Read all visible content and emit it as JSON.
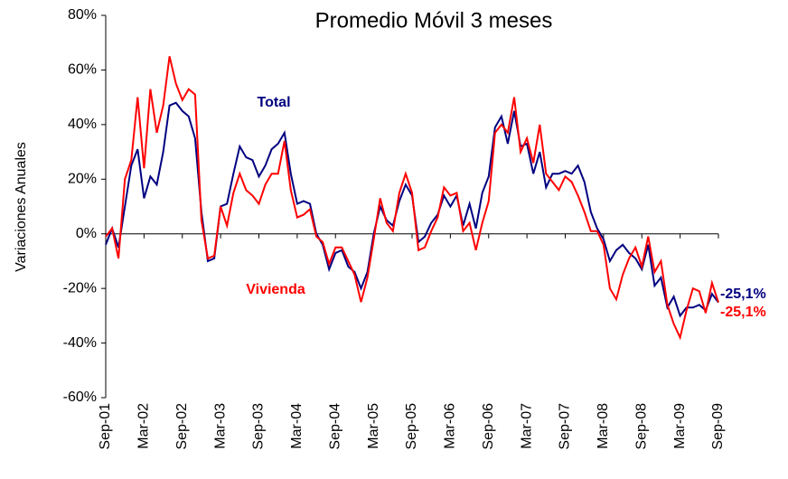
{
  "chart_data": {
    "type": "line",
    "title": "Promedio Móvil 3 meses",
    "y_label": "Variaciones Anuales",
    "categories": [
      "Sep-01",
      null,
      null,
      null,
      null,
      null,
      "Mar-02",
      null,
      null,
      null,
      null,
      null,
      "Sep-02",
      null,
      null,
      null,
      null,
      null,
      "Mar-03",
      null,
      null,
      null,
      null,
      null,
      "Sep-03",
      null,
      null,
      null,
      null,
      null,
      "Mar-04",
      null,
      null,
      null,
      null,
      null,
      "Sep-04",
      null,
      null,
      null,
      null,
      null,
      "Mar-05",
      null,
      null,
      null,
      null,
      null,
      "Sep-05",
      null,
      null,
      null,
      null,
      null,
      "Mar-06",
      null,
      null,
      null,
      null,
      null,
      "Sep-06",
      null,
      null,
      null,
      null,
      null,
      "Mar-07",
      null,
      null,
      null,
      null,
      null,
      "Sep-07",
      null,
      null,
      null,
      null,
      null,
      "Mar-08",
      null,
      null,
      null,
      null,
      null,
      "Sep-08",
      null,
      null,
      null,
      null,
      null,
      "Mar-09",
      null,
      null,
      null,
      null,
      null,
      "Sep-09"
    ],
    "series": [
      {
        "name": "Total",
        "color": "#000080",
        "values": [
          -4,
          2,
          -5,
          10,
          25,
          31,
          13,
          21,
          18,
          30,
          47,
          48,
          45,
          43,
          35,
          8,
          -10,
          -9,
          10,
          11,
          22,
          32,
          28,
          27,
          21,
          25,
          31,
          33,
          37,
          22,
          11,
          12,
          11,
          0,
          -4,
          -13,
          -7,
          -6,
          -12,
          -14,
          -20,
          -14,
          0,
          10,
          5,
          3,
          12,
          18,
          14,
          -3,
          -1,
          4,
          7,
          14,
          10,
          14,
          3,
          11,
          2,
          15,
          21,
          39,
          43,
          33,
          45,
          32,
          33,
          22,
          30,
          17,
          22,
          22,
          23,
          22,
          25,
          19,
          8,
          2,
          -2,
          -10,
          -6,
          -4,
          -7,
          -9,
          -13,
          -4,
          -19,
          -16,
          -27,
          -23,
          -30,
          -27,
          -27,
          -26,
          -28,
          -22,
          -25.1
        ],
        "value_labels": [
          null,
          null,
          null,
          null,
          null,
          null,
          null,
          null,
          null,
          null,
          null,
          null,
          null,
          null,
          null,
          null,
          null,
          null,
          null,
          null,
          null,
          null,
          null,
          null,
          null,
          null,
          null,
          null,
          null,
          null,
          null,
          null,
          null,
          null,
          null,
          null,
          null,
          null,
          null,
          null,
          null,
          null,
          null,
          null,
          null,
          null,
          null,
          null,
          null,
          null,
          null,
          null,
          null,
          null,
          null,
          null,
          null,
          null,
          null,
          null,
          null,
          null,
          null,
          null,
          null,
          null,
          null,
          null,
          null,
          null,
          null,
          null,
          null,
          null,
          null,
          null,
          null,
          null,
          null,
          null,
          null,
          null,
          null,
          null,
          null,
          null,
          null,
          null,
          null,
          null,
          null,
          null,
          null,
          null,
          null,
          null,
          "-25,1%"
        ]
      },
      {
        "name": "Vivienda",
        "color": "#ff0000",
        "values": [
          -1,
          2,
          -9,
          20,
          27,
          50,
          24,
          53,
          37,
          47,
          65,
          55,
          49,
          53,
          51,
          5,
          -9,
          -8,
          10,
          3,
          15,
          22,
          16,
          14,
          11,
          18,
          22,
          22,
          34,
          16,
          6,
          7,
          9,
          -1,
          -3,
          -11,
          -5,
          -5,
          -10,
          -15,
          -25,
          -16,
          -2,
          13,
          4,
          1,
          15,
          22,
          15,
          -6,
          -5,
          1,
          6,
          17,
          14,
          15,
          1,
          4,
          -6,
          4,
          12,
          37,
          40,
          37,
          50,
          30,
          35,
          26,
          40,
          22,
          19,
          16,
          21,
          19,
          14,
          8,
          1,
          1,
          -4,
          -20,
          -24,
          -15,
          -9,
          -5,
          -12,
          -1,
          -14,
          -10,
          -26,
          -33,
          -38,
          -28,
          -20,
          -21,
          -29,
          -18,
          -25.1
        ],
        "value_labels": [
          null,
          null,
          null,
          null,
          null,
          null,
          null,
          null,
          null,
          null,
          null,
          null,
          null,
          null,
          null,
          null,
          null,
          null,
          null,
          null,
          null,
          null,
          null,
          null,
          null,
          null,
          null,
          null,
          null,
          null,
          null,
          null,
          null,
          null,
          null,
          null,
          null,
          null,
          null,
          null,
          null,
          null,
          null,
          null,
          null,
          null,
          null,
          null,
          null,
          null,
          null,
          null,
          null,
          null,
          null,
          null,
          null,
          null,
          null,
          null,
          null,
          null,
          null,
          null,
          null,
          null,
          null,
          null,
          null,
          null,
          null,
          null,
          null,
          null,
          null,
          null,
          null,
          null,
          null,
          null,
          null,
          null,
          null,
          null,
          null,
          null,
          null,
          null,
          null,
          null,
          null,
          null,
          null,
          null,
          null,
          null,
          "-25,1%"
        ]
      }
    ],
    "ylim": [
      -60,
      80
    ],
    "yticks": [
      {
        "value": -60,
        "label": "-60%"
      },
      {
        "value": -40,
        "label": "-40%"
      },
      {
        "value": -20,
        "label": "-20%"
      },
      {
        "value": 0,
        "label": "0%"
      },
      {
        "value": 20,
        "label": "20%"
      },
      {
        "value": 40,
        "label": "40%"
      },
      {
        "value": 60,
        "label": "60%"
      },
      {
        "value": 80,
        "label": "80%"
      }
    ],
    "grid": false
  }
}
